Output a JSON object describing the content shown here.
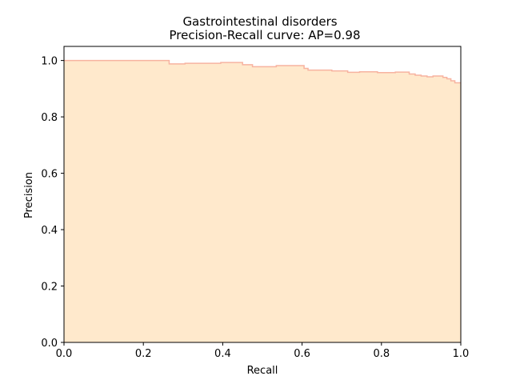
{
  "chart_data": {
    "type": "area",
    "title_line1": "Gastrointestinal disorders",
    "title_line2": "Precision-Recall curve: AP=0.98",
    "xlabel": "Recall",
    "ylabel": "Precision",
    "xlim": [
      0,
      1
    ],
    "ylim": [
      0,
      1.05
    ],
    "x_ticks": [
      0.0,
      0.2,
      0.4,
      0.6,
      0.8,
      1.0
    ],
    "x_tick_labels": [
      "0.0",
      "0.2",
      "0.4",
      "0.6",
      "0.8",
      "1.0"
    ],
    "y_ticks": [
      0.0,
      0.2,
      0.4,
      0.6,
      0.8,
      1.0
    ],
    "y_tick_labels": [
      "0.0",
      "0.2",
      "0.4",
      "0.6",
      "0.8",
      "1.0"
    ],
    "grid": false,
    "fill_color": "#ffe9cc",
    "line_color": "#f7b3a0",
    "step_points": [
      [
        0.0,
        1.0
      ],
      [
        0.265,
        1.0
      ],
      [
        0.265,
        0.988
      ],
      [
        0.305,
        0.988
      ],
      [
        0.305,
        0.99
      ],
      [
        0.395,
        0.99
      ],
      [
        0.395,
        0.993
      ],
      [
        0.45,
        0.993
      ],
      [
        0.45,
        0.985
      ],
      [
        0.475,
        0.985
      ],
      [
        0.475,
        0.978
      ],
      [
        0.535,
        0.978
      ],
      [
        0.535,
        0.982
      ],
      [
        0.605,
        0.982
      ],
      [
        0.605,
        0.972
      ],
      [
        0.615,
        0.972
      ],
      [
        0.615,
        0.966
      ],
      [
        0.675,
        0.966
      ],
      [
        0.675,
        0.963
      ],
      [
        0.715,
        0.963
      ],
      [
        0.715,
        0.958
      ],
      [
        0.745,
        0.958
      ],
      [
        0.745,
        0.96
      ],
      [
        0.79,
        0.96
      ],
      [
        0.79,
        0.957
      ],
      [
        0.835,
        0.957
      ],
      [
        0.835,
        0.959
      ],
      [
        0.87,
        0.959
      ],
      [
        0.87,
        0.952
      ],
      [
        0.885,
        0.952
      ],
      [
        0.885,
        0.948
      ],
      [
        0.9,
        0.948
      ],
      [
        0.9,
        0.945
      ],
      [
        0.915,
        0.945
      ],
      [
        0.915,
        0.942
      ],
      [
        0.93,
        0.942
      ],
      [
        0.93,
        0.945
      ],
      [
        0.955,
        0.945
      ],
      [
        0.955,
        0.94
      ],
      [
        0.965,
        0.94
      ],
      [
        0.965,
        0.935
      ],
      [
        0.975,
        0.935
      ],
      [
        0.975,
        0.928
      ],
      [
        0.985,
        0.928
      ],
      [
        0.985,
        0.921
      ],
      [
        1.0,
        0.921
      ]
    ]
  }
}
